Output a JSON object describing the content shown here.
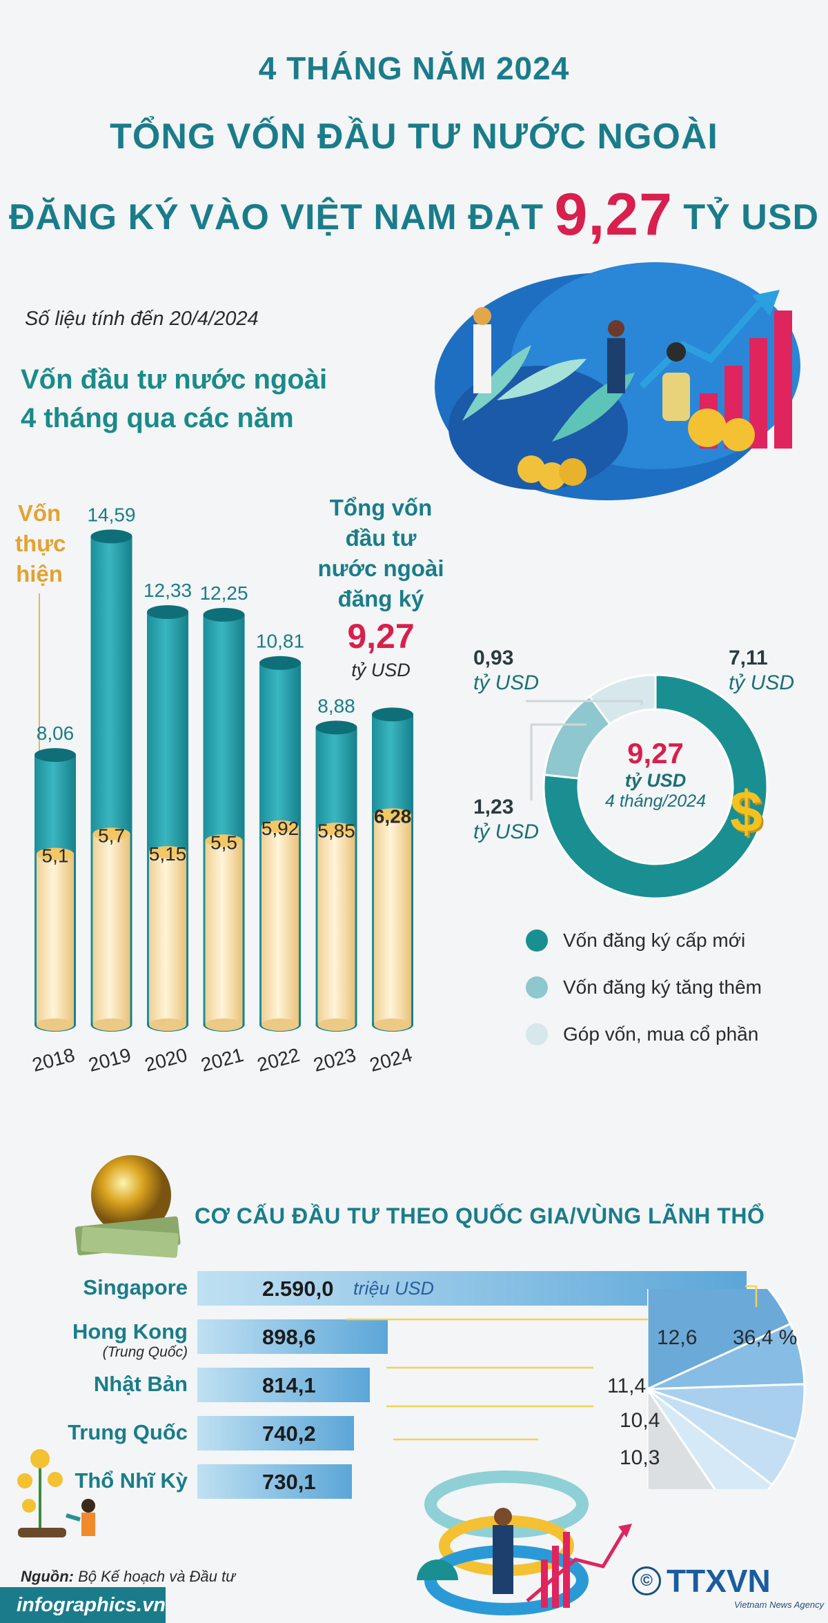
{
  "header": {
    "line1": "4 THÁNG NĂM 2024",
    "line2": "TỔNG VỐN ĐẦU TƯ NƯỚC NGOÀI",
    "line3_pre": "ĐĂNG KÝ VÀO VIỆT NAM ĐẠT",
    "line3_value": "9,27",
    "line3_post": "TỶ USD"
  },
  "note": "Số liệu tính đến 20/4/2024",
  "section1_title_1": "Vốn đầu tư nước ngoài",
  "section1_title_2": "4 tháng qua các năm",
  "disbursed_label": [
    "Vốn",
    "thực",
    "hiện"
  ],
  "registered_label": [
    "Tổng vốn",
    "đầu tư",
    "nước ngoài",
    "đăng ký"
  ],
  "registered_value": "9,27",
  "registered_unit": "tỷ USD",
  "donut": {
    "center_value": "9,27",
    "center_unit": "tỷ USD",
    "center_period": "4 tháng/2024",
    "labels": [
      {
        "value": "7,11",
        "unit": "tỷ USD"
      },
      {
        "value": "1,23",
        "unit": "tỷ USD"
      },
      {
        "value": "0,93",
        "unit": "tỷ USD"
      }
    ],
    "legend": [
      "Vốn đăng ký cấp mới",
      "Vốn đăng ký tăng thêm",
      "Góp vốn, mua cổ phần"
    ],
    "colors": [
      "#1a8f92",
      "#8ec7cd",
      "#d6e8ec"
    ]
  },
  "countries_title": "CƠ CẤU ĐẦU TƯ THEO QUỐC GIA/VÙNG LÃNH THỔ",
  "countries_unit": "triệu USD",
  "source_label": "Nguồn:",
  "source_text": "Bộ Kế hoạch và Đầu tư",
  "site": "infographics.vn",
  "brand": "TTXVN",
  "brand_sub": "Vietnam News Agency",
  "copyright_symbol": "©",
  "chart_data": [
    {
      "type": "bar",
      "categories": [
        "2018",
        "2019",
        "2020",
        "2021",
        "2022",
        "2023",
        "2024"
      ],
      "series": [
        {
          "name": "Tổng vốn đầu tư nước ngoài đăng ký",
          "values": [
            8.06,
            14.59,
            12.33,
            12.25,
            10.81,
            8.88,
            9.27
          ],
          "labels": [
            "8,06",
            "14,59",
            "12,33",
            "12,25",
            "10,81",
            "8,88",
            ""
          ]
        },
        {
          "name": "Vốn thực hiện",
          "values": [
            5.1,
            5.7,
            5.15,
            5.5,
            5.92,
            5.85,
            6.28
          ],
          "labels": [
            "5,1",
            "5,7",
            "5,15",
            "5,5",
            "5,92",
            "5,85",
            "6,28"
          ]
        }
      ],
      "colors": {
        "registered": "#1f9aa6",
        "disbursed": "#f3d68f"
      }
    },
    {
      "type": "pie",
      "categories": [
        "Vốn đăng ký cấp mới",
        "Vốn đăng ký tăng thêm",
        "Góp vốn, mua cổ phần"
      ],
      "values": [
        7.11,
        1.23,
        0.93
      ]
    },
    {
      "type": "bar",
      "categories": [
        "Singapore",
        "Hong Kong",
        "Nhật Bản",
        "Trung Quốc",
        "Thổ Nhĩ Kỳ"
      ],
      "sublabels": [
        "",
        "(Trung Quốc)",
        "",
        "",
        ""
      ],
      "values": [
        2590.0,
        898.6,
        814.1,
        740.2,
        730.1
      ],
      "labels": [
        "2.590,0",
        "898,6",
        "814,1",
        "740,2",
        "730,1"
      ]
    },
    {
      "type": "pie",
      "categories": [
        "Singapore",
        "Hong Kong",
        "Nhật Bản",
        "Trung Quốc",
        "Thổ Nhĩ Kỳ",
        ""
      ],
      "values": [
        36.4,
        12.6,
        11.4,
        10.4,
        10.3,
        18.9
      ],
      "labels": [
        "36,4 %",
        "12,6",
        "11,4",
        "10,4",
        "10,3",
        ""
      ]
    }
  ]
}
